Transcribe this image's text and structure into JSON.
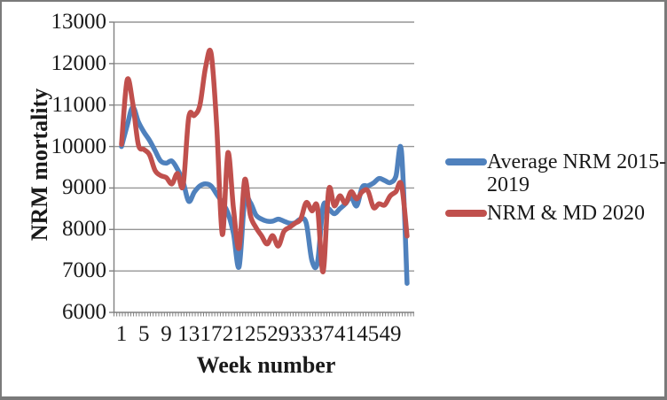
{
  "figure": {
    "background": "#ffffff",
    "frame_color": "#7a7a7a",
    "text_color": "#1a1a1a",
    "gridline_color": "#969696",
    "axis_color": "#808080"
  },
  "chart_data": {
    "type": "line",
    "smoothed": true,
    "title": "",
    "xlabel": "Week number",
    "ylabel": "NRM mortality",
    "ylim": [
      6000,
      13000
    ],
    "y_tick_step": 1000,
    "y_tick_labels": [
      "6000",
      "7000",
      "8000",
      "9000",
      "10000",
      "11000",
      "12000",
      "13000"
    ],
    "x_tick_labels": [
      1,
      5,
      9,
      13,
      17,
      21,
      25,
      29,
      33,
      37,
      41,
      45,
      49
    ],
    "x": [
      1,
      2,
      3,
      4,
      5,
      6,
      7,
      8,
      9,
      10,
      11,
      12,
      13,
      14,
      15,
      16,
      17,
      18,
      19,
      20,
      21,
      22,
      23,
      24,
      25,
      26,
      27,
      28,
      29,
      30,
      31,
      32,
      33,
      34,
      35,
      36,
      37,
      38,
      39,
      40,
      41,
      42,
      43,
      44,
      45,
      46,
      47,
      48,
      49,
      50,
      51,
      52
    ],
    "grid": true,
    "legend_position": "right",
    "series": [
      {
        "name": "Average NRM 2015-2019",
        "color": "#4F81BD",
        "values": [
          10000,
          10500,
          10950,
          10600,
          10350,
          10150,
          9900,
          9650,
          9600,
          9650,
          9450,
          9150,
          8680,
          8900,
          9050,
          9100,
          9050,
          8850,
          8650,
          8400,
          7900,
          7100,
          8700,
          8650,
          8350,
          8250,
          8200,
          8200,
          8250,
          8200,
          8150,
          8160,
          8250,
          8150,
          7250,
          7200,
          8550,
          8500,
          8380,
          8500,
          8620,
          8780,
          8570,
          9020,
          9050,
          9120,
          9230,
          9180,
          9130,
          9280,
          9890,
          6700
        ]
      },
      {
        "name": "NRM & MD 2020",
        "color": "#C0504D",
        "values": [
          10050,
          11600,
          11050,
          10050,
          9930,
          9800,
          9420,
          9300,
          9250,
          9100,
          9350,
          9060,
          10700,
          10750,
          11000,
          11900,
          12250,
          10500,
          7880,
          9850,
          8500,
          7550,
          9200,
          8350,
          8050,
          7850,
          7650,
          7850,
          7600,
          7950,
          8050,
          8150,
          8250,
          8650,
          8450,
          8530,
          6980,
          8950,
          8570,
          8810,
          8630,
          8910,
          8740,
          8910,
          8930,
          8530,
          8620,
          8590,
          8810,
          8910,
          9080,
          7840
        ]
      }
    ]
  },
  "legend": {
    "items": [
      {
        "label_lines": [
          "Average NRM 2015-",
          "2019"
        ],
        "color": "#4F81BD"
      },
      {
        "label_lines": [
          "NRM & MD 2020"
        ],
        "color": "#C0504D"
      }
    ]
  }
}
